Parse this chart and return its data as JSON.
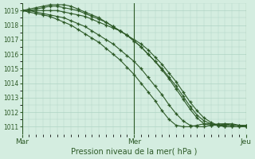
{
  "title": "",
  "xlabel": "Pression niveau de la mer( hPa )",
  "ylim": [
    1010.5,
    1019.5
  ],
  "yticks": [
    1011,
    1012,
    1013,
    1014,
    1015,
    1016,
    1017,
    1018,
    1019
  ],
  "xtick_labels": [
    "Mar",
    "Mer",
    "Jeu"
  ],
  "xtick_positions": [
    0,
    16,
    32
  ],
  "bg_color": "#d4ede0",
  "grid_color": "#afd4c4",
  "line_color": "#2d5a27",
  "num_points": 33,
  "series": [
    [
      1019.0,
      1019.0,
      1019.0,
      1019.0,
      1019.0,
      1019.0,
      1018.9,
      1018.8,
      1018.7,
      1018.6,
      1018.4,
      1018.2,
      1018.0,
      1017.8,
      1017.6,
      1017.3,
      1017.0,
      1016.7,
      1016.3,
      1015.8,
      1015.3,
      1014.7,
      1014.1,
      1013.4,
      1012.7,
      1012.1,
      1011.6,
      1011.3,
      1011.1,
      1011.0,
      1011.0,
      1011.0,
      1011.0
    ],
    [
      1019.0,
      1019.0,
      1019.1,
      1019.2,
      1019.3,
      1019.3,
      1019.2,
      1019.1,
      1019.0,
      1018.8,
      1018.6,
      1018.4,
      1018.2,
      1017.9,
      1017.6,
      1017.3,
      1016.9,
      1016.5,
      1016.0,
      1015.5,
      1015.0,
      1014.4,
      1013.8,
      1013.1,
      1012.4,
      1011.8,
      1011.4,
      1011.2,
      1011.1,
      1011.1,
      1011.1,
      1011.1,
      1011.1
    ],
    [
      1019.0,
      1019.1,
      1019.2,
      1019.3,
      1019.4,
      1019.4,
      1019.4,
      1019.3,
      1019.1,
      1018.9,
      1018.7,
      1018.5,
      1018.2,
      1017.9,
      1017.6,
      1017.3,
      1016.9,
      1016.5,
      1016.0,
      1015.5,
      1014.9,
      1014.3,
      1013.6,
      1012.9,
      1012.2,
      1011.6,
      1011.2,
      1011.1,
      1011.1,
      1011.2,
      1011.2,
      1011.1,
      1011.1
    ],
    [
      1019.0,
      1019.0,
      1018.9,
      1018.8,
      1018.7,
      1018.6,
      1018.5,
      1018.3,
      1018.1,
      1017.9,
      1017.6,
      1017.3,
      1017.0,
      1016.7,
      1016.3,
      1015.9,
      1015.5,
      1015.0,
      1014.4,
      1013.8,
      1013.2,
      1012.5,
      1011.9,
      1011.4,
      1011.1,
      1011.0,
      1011.0,
      1011.1,
      1011.2,
      1011.2,
      1011.1,
      1011.1,
      1011.0
    ],
    [
      1019.0,
      1018.9,
      1018.8,
      1018.7,
      1018.6,
      1018.4,
      1018.2,
      1018.0,
      1017.7,
      1017.4,
      1017.1,
      1016.8,
      1016.4,
      1016.0,
      1015.6,
      1015.1,
      1014.6,
      1014.0,
      1013.4,
      1012.8,
      1012.1,
      1011.5,
      1011.1,
      1011.0,
      1011.0,
      1011.1,
      1011.2,
      1011.2,
      1011.1,
      1011.0,
      1011.0,
      1011.0,
      1011.0
    ]
  ]
}
